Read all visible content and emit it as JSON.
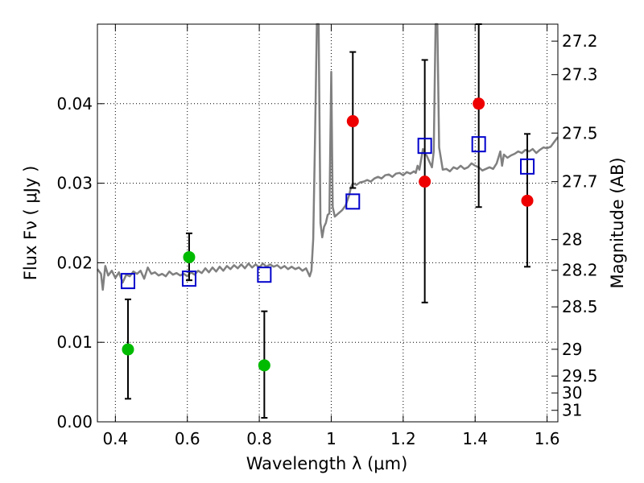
{
  "chart_data": {
    "type": "scatter",
    "xlabel": "Wavelength  λ (μm)",
    "ylabel_left": "Flux  Fν  ( μJy )",
    "ylabel_right": "Magnitude (AB)",
    "xlim": [
      0.35,
      1.63
    ],
    "ylim": [
      0,
      0.05
    ],
    "x_ticks": [
      {
        "value": 0.4,
        "label": "0.4"
      },
      {
        "value": 0.6,
        "label": "0.6"
      },
      {
        "value": 0.8,
        "label": "0.8"
      },
      {
        "value": 1.0,
        "label": "1"
      },
      {
        "value": 1.2,
        "label": "1.2"
      },
      {
        "value": 1.4,
        "label": "1.4"
      },
      {
        "value": 1.6,
        "label": "1.6"
      }
    ],
    "y_ticks": [
      {
        "value": 0.0,
        "label": "0.00"
      },
      {
        "value": 0.01,
        "label": "0.01"
      },
      {
        "value": 0.02,
        "label": "0.02"
      },
      {
        "value": 0.03,
        "label": "0.03"
      },
      {
        "value": 0.04,
        "label": "0.04"
      }
    ],
    "mag_ticks": [
      {
        "value": 27.2,
        "label": "27.2"
      },
      {
        "value": 27.3,
        "label": "27.3"
      },
      {
        "value": 27.5,
        "label": "27.5"
      },
      {
        "value": 27.7,
        "label": "27.7"
      },
      {
        "value": 28,
        "label": "28"
      },
      {
        "value": 28.2,
        "label": "28.2"
      },
      {
        "value": 28.5,
        "label": "28.5"
      },
      {
        "value": 29,
        "label": "29"
      },
      {
        "value": 29.5,
        "label": "29.5"
      },
      {
        "value": 30,
        "label": "30"
      },
      {
        "value": 31,
        "label": "31"
      }
    ],
    "grid": true,
    "colors": {
      "green": "#00bb00",
      "red": "#ee0000",
      "model": "#0000cc",
      "spectrum": "#808080",
      "errorbar": "#000000"
    },
    "green_points": [
      {
        "x": 0.435,
        "y": 0.0091,
        "ylo": 0.0029,
        "yhi": 0.0154
      },
      {
        "x": 0.605,
        "y": 0.0207,
        "ylo": 0.0178,
        "yhi": 0.0237
      },
      {
        "x": 0.814,
        "y": 0.0071,
        "ylo": 0.0005,
        "yhi": 0.0139
      }
    ],
    "red_points": [
      {
        "x": 1.06,
        "y": 0.0378,
        "ylo": 0.0294,
        "yhi": 0.0465
      },
      {
        "x": 1.26,
        "y": 0.0302,
        "ylo": 0.015,
        "yhi": 0.0455
      },
      {
        "x": 1.41,
        "y": 0.04,
        "ylo": 0.027,
        "yhi": 0.05
      },
      {
        "x": 1.545,
        "y": 0.0278,
        "ylo": 0.0195,
        "yhi": 0.0362
      }
    ],
    "model_points": [
      {
        "x": 0.435,
        "y": 0.0177
      },
      {
        "x": 0.605,
        "y": 0.018
      },
      {
        "x": 0.814,
        "y": 0.0185
      },
      {
        "x": 1.06,
        "y": 0.0277
      },
      {
        "x": 1.26,
        "y": 0.0347
      },
      {
        "x": 1.41,
        "y": 0.0349
      },
      {
        "x": 1.545,
        "y": 0.0321
      }
    ],
    "spectrum": [
      [
        0.35,
        0.0192
      ],
      [
        0.36,
        0.0186
      ],
      [
        0.365,
        0.0166
      ],
      [
        0.372,
        0.0196
      ],
      [
        0.38,
        0.0184
      ],
      [
        0.39,
        0.019
      ],
      [
        0.4,
        0.0181
      ],
      [
        0.41,
        0.0188
      ],
      [
        0.42,
        0.0175
      ],
      [
        0.43,
        0.0185
      ],
      [
        0.44,
        0.0183
      ],
      [
        0.45,
        0.0189
      ],
      [
        0.46,
        0.0186
      ],
      [
        0.47,
        0.019
      ],
      [
        0.48,
        0.018
      ],
      [
        0.49,
        0.0194
      ],
      [
        0.5,
        0.0186
      ],
      [
        0.51,
        0.0188
      ],
      [
        0.52,
        0.0184
      ],
      [
        0.53,
        0.0186
      ],
      [
        0.54,
        0.0183
      ],
      [
        0.55,
        0.0189
      ],
      [
        0.56,
        0.0185
      ],
      [
        0.57,
        0.0187
      ],
      [
        0.58,
        0.0184
      ],
      [
        0.59,
        0.0186
      ],
      [
        0.6,
        0.0183
      ],
      [
        0.61,
        0.0188
      ],
      [
        0.62,
        0.0185
      ],
      [
        0.63,
        0.019
      ],
      [
        0.64,
        0.0187
      ],
      [
        0.65,
        0.0193
      ],
      [
        0.66,
        0.0188
      ],
      [
        0.67,
        0.0194
      ],
      [
        0.68,
        0.0189
      ],
      [
        0.69,
        0.0195
      ],
      [
        0.7,
        0.019
      ],
      [
        0.71,
        0.0196
      ],
      [
        0.72,
        0.0192
      ],
      [
        0.73,
        0.0197
      ],
      [
        0.74,
        0.0193
      ],
      [
        0.75,
        0.0198
      ],
      [
        0.76,
        0.0193
      ],
      [
        0.77,
        0.0199
      ],
      [
        0.78,
        0.0194
      ],
      [
        0.79,
        0.0198
      ],
      [
        0.8,
        0.0194
      ],
      [
        0.81,
        0.0199
      ],
      [
        0.82,
        0.0195
      ],
      [
        0.83,
        0.0198
      ],
      [
        0.84,
        0.0195
      ],
      [
        0.85,
        0.0197
      ],
      [
        0.86,
        0.0193
      ],
      [
        0.87,
        0.0196
      ],
      [
        0.88,
        0.0192
      ],
      [
        0.89,
        0.0195
      ],
      [
        0.9,
        0.0192
      ],
      [
        0.91,
        0.0194
      ],
      [
        0.92,
        0.019
      ],
      [
        0.93,
        0.0193
      ],
      [
        0.94,
        0.0183
      ],
      [
        0.945,
        0.019
      ],
      [
        0.95,
        0.023
      ],
      [
        0.955,
        0.036
      ],
      [
        0.96,
        0.05
      ],
      [
        0.965,
        0.05
      ],
      [
        0.97,
        0.025
      ],
      [
        0.975,
        0.0232
      ],
      [
        0.98,
        0.0245
      ],
      [
        0.985,
        0.025
      ],
      [
        0.99,
        0.026
      ],
      [
        0.995,
        0.0262
      ],
      [
        1.0,
        0.044
      ],
      [
        1.004,
        0.027
      ],
      [
        1.01,
        0.0258
      ],
      [
        1.02,
        0.0262
      ],
      [
        1.03,
        0.0266
      ],
      [
        1.04,
        0.0272
      ],
      [
        1.05,
        0.0285
      ],
      [
        1.055,
        0.0295
      ],
      [
        1.06,
        0.03
      ],
      [
        1.07,
        0.0298
      ],
      [
        1.08,
        0.0301
      ],
      [
        1.09,
        0.0302
      ],
      [
        1.1,
        0.0304
      ],
      [
        1.11,
        0.0302
      ],
      [
        1.12,
        0.0306
      ],
      [
        1.13,
        0.0308
      ],
      [
        1.14,
        0.0306
      ],
      [
        1.15,
        0.031
      ],
      [
        1.16,
        0.0311
      ],
      [
        1.17,
        0.0308
      ],
      [
        1.18,
        0.0312
      ],
      [
        1.19,
        0.0313
      ],
      [
        1.2,
        0.031
      ],
      [
        1.21,
        0.0314
      ],
      [
        1.22,
        0.0312
      ],
      [
        1.23,
        0.0315
      ],
      [
        1.235,
        0.0313
      ],
      [
        1.24,
        0.0322
      ],
      [
        1.245,
        0.0317
      ],
      [
        1.25,
        0.033
      ],
      [
        1.255,
        0.0343
      ],
      [
        1.26,
        0.0337
      ],
      [
        1.265,
        0.0335
      ],
      [
        1.27,
        0.033
      ],
      [
        1.28,
        0.032
      ],
      [
        1.285,
        0.034
      ],
      [
        1.29,
        0.05
      ],
      [
        1.295,
        0.05
      ],
      [
        1.3,
        0.0345
      ],
      [
        1.31,
        0.0317
      ],
      [
        1.32,
        0.0318
      ],
      [
        1.33,
        0.0315
      ],
      [
        1.34,
        0.032
      ],
      [
        1.35,
        0.0318
      ],
      [
        1.36,
        0.0322
      ],
      [
        1.37,
        0.0318
      ],
      [
        1.38,
        0.032
      ],
      [
        1.39,
        0.0325
      ],
      [
        1.4,
        0.0322
      ],
      [
        1.41,
        0.032
      ],
      [
        1.42,
        0.0316
      ],
      [
        1.43,
        0.0318
      ],
      [
        1.44,
        0.032
      ],
      [
        1.45,
        0.0318
      ],
      [
        1.46,
        0.0325
      ],
      [
        1.47,
        0.034
      ],
      [
        1.475,
        0.0322
      ],
      [
        1.48,
        0.0336
      ],
      [
        1.49,
        0.0332
      ],
      [
        1.5,
        0.0335
      ],
      [
        1.51,
        0.0337
      ],
      [
        1.52,
        0.034
      ],
      [
        1.53,
        0.0338
      ],
      [
        1.54,
        0.0342
      ],
      [
        1.55,
        0.034
      ],
      [
        1.56,
        0.0343
      ],
      [
        1.57,
        0.0338
      ],
      [
        1.58,
        0.0342
      ],
      [
        1.59,
        0.0345
      ],
      [
        1.6,
        0.0344
      ],
      [
        1.61,
        0.0346
      ],
      [
        1.62,
        0.0352
      ],
      [
        1.63,
        0.0358
      ]
    ]
  }
}
